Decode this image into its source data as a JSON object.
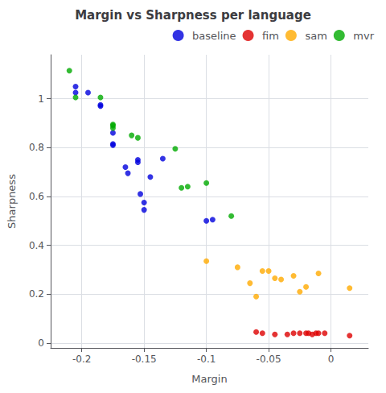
{
  "chart_data": {
    "type": "scatter",
    "title": "Margin vs Sharpness per language",
    "xlabel": "Margin",
    "ylabel": "Sharpness",
    "series": [
      {
        "name": "baseline",
        "color": "#0000dd",
        "x": [
          -0.205,
          -0.205,
          -0.195,
          -0.185,
          -0.185,
          -0.175,
          -0.175,
          -0.175,
          -0.165,
          -0.163,
          -0.155,
          -0.155,
          -0.153,
          -0.15,
          -0.15,
          -0.145,
          -0.135,
          -0.1,
          -0.095
        ],
        "values": [
          1.05,
          1.025,
          1.025,
          0.975,
          0.97,
          0.815,
          0.81,
          0.86,
          0.72,
          0.695,
          0.75,
          0.74,
          0.61,
          0.545,
          0.575,
          0.68,
          0.755,
          0.5,
          0.505
        ]
      },
      {
        "name": "fim",
        "color": "#dd0000",
        "x": [
          -0.06,
          -0.055,
          -0.045,
          -0.035,
          -0.03,
          -0.025,
          -0.02,
          -0.018,
          -0.015,
          -0.012,
          -0.01,
          -0.005,
          0.015
        ],
        "values": [
          0.045,
          0.04,
          0.035,
          0.035,
          0.04,
          0.04,
          0.04,
          0.04,
          0.035,
          0.04,
          0.04,
          0.04,
          0.03
        ]
      },
      {
        "name": "sam",
        "color": "#ffaa00",
        "x": [
          -0.1,
          -0.075,
          -0.065,
          -0.06,
          -0.055,
          -0.05,
          -0.045,
          -0.04,
          -0.03,
          -0.025,
          -0.02,
          -0.01,
          0.015
        ],
        "values": [
          0.335,
          0.31,
          0.245,
          0.19,
          0.295,
          0.295,
          0.265,
          0.26,
          0.275,
          0.21,
          0.23,
          0.285,
          0.225
        ]
      },
      {
        "name": "mvr",
        "color": "#00aa00",
        "x": [
          -0.21,
          -0.205,
          -0.185,
          -0.175,
          -0.175,
          -0.175,
          -0.16,
          -0.155,
          -0.125,
          -0.12,
          -0.115,
          -0.1,
          -0.08
        ],
        "values": [
          1.115,
          1.005,
          1.005,
          0.89,
          0.895,
          0.88,
          0.85,
          0.84,
          0.795,
          0.635,
          0.64,
          0.655,
          0.52
        ]
      }
    ],
    "xlim": [
      -0.225,
      0.03
    ],
    "xticks": [
      -0.2,
      -0.15,
      -0.1,
      -0.05,
      0
    ],
    "ylim": [
      -0.02,
      1.18
    ],
    "yticks": [
      0,
      0.2,
      0.4,
      0.6,
      0.8,
      1
    ],
    "grid": true,
    "legend": "upper right"
  }
}
